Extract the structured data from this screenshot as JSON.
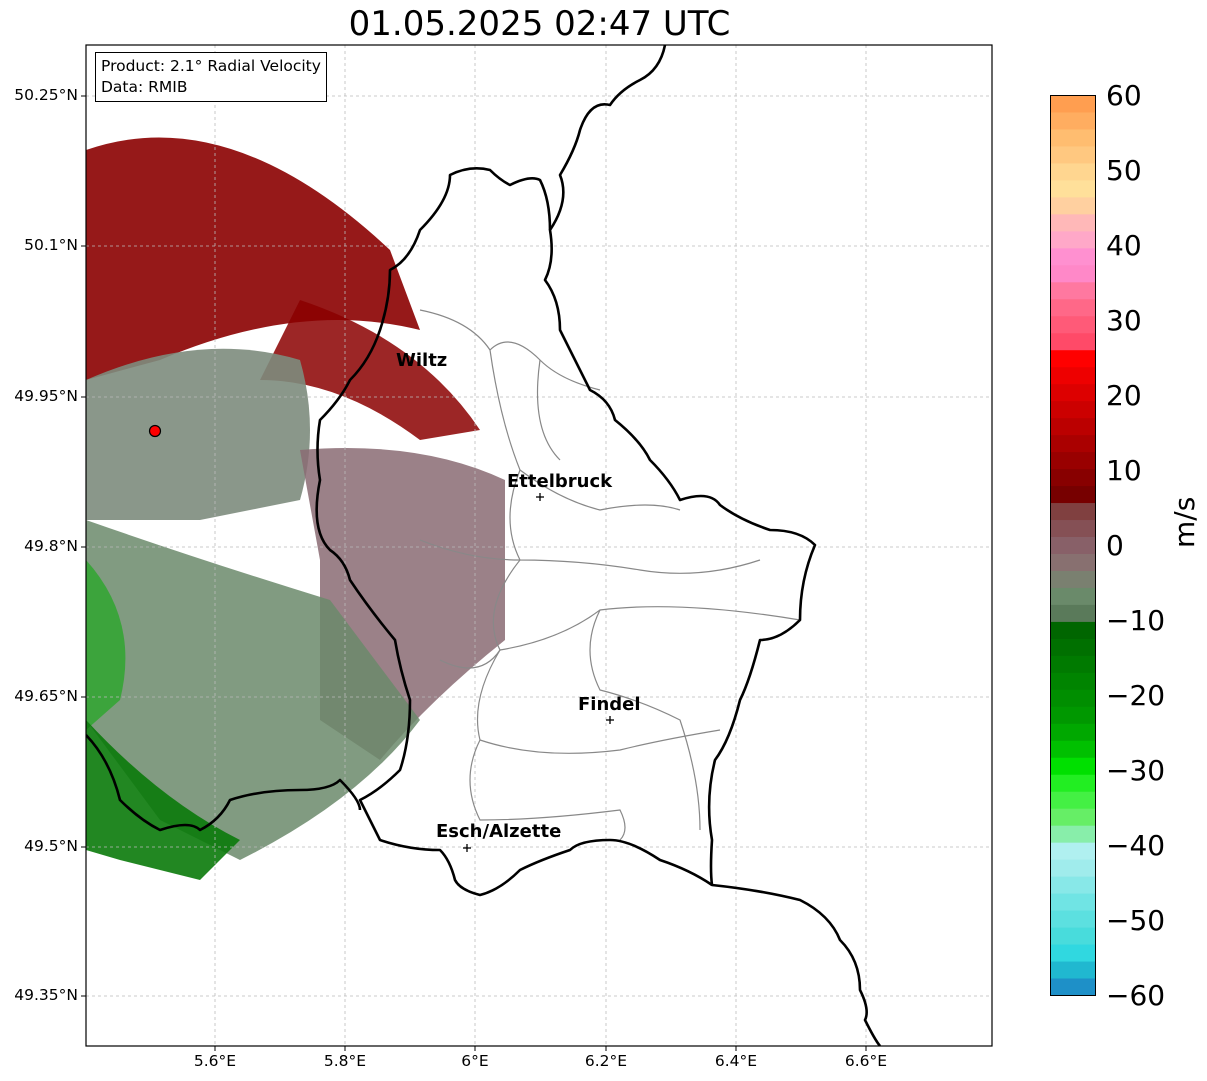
{
  "title": "01.05.2025 02:47 UTC",
  "info": {
    "line1": "Product: 2.1° Radial Velocity",
    "line2": "Data: RMIB"
  },
  "lat_ticks": [
    "50.25°N",
    "50.1°N",
    "49.95°N",
    "49.8°N",
    "49.65°N",
    "49.5°N",
    "49.35°N"
  ],
  "lon_ticks": [
    "5.6°E",
    "5.8°E",
    "6°E",
    "6.2°E",
    "6.4°E",
    "6.6°E"
  ],
  "cities": [
    {
      "name": "Wiltz"
    },
    {
      "name": "Ettelbruck"
    },
    {
      "name": "Findel"
    },
    {
      "name": "Esch/Alzette"
    }
  ],
  "colorbar": {
    "unit": "m/s",
    "ticks": [
      "60",
      "50",
      "40",
      "30",
      "20",
      "10",
      "0",
      "−10",
      "−20",
      "−30",
      "−40",
      "−50",
      "−60"
    ],
    "range": [
      -60,
      60
    ]
  },
  "colors": {
    "positive_strong": "#8b0000",
    "zero": "#6b8a6b",
    "negative_strong": "#0a8a0a",
    "radar_site": "#ff0000"
  }
}
